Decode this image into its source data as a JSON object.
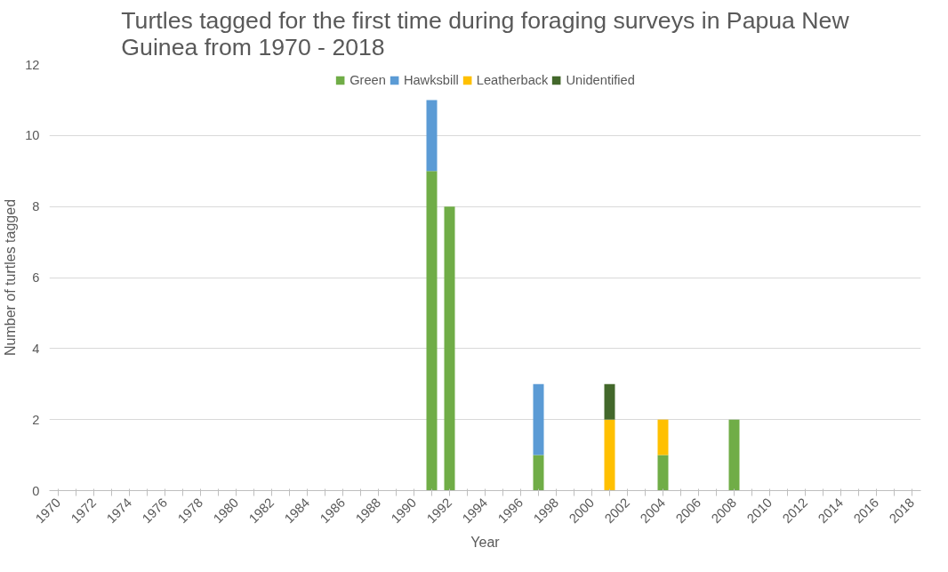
{
  "chart_data": {
    "type": "bar",
    "stacked": true,
    "title": "Turtles tagged for the first time during foraging surveys in Papua New\nGuinea from 1970 - 2018",
    "xlabel": "Year",
    "ylabel": "Number of turtles tagged",
    "categories": [
      "1970",
      null,
      "1972",
      null,
      "1974",
      null,
      "1976",
      null,
      "1978",
      null,
      "1980",
      null,
      "1982",
      null,
      "1984",
      null,
      "1986",
      null,
      "1988",
      null,
      "1990",
      null,
      "1992",
      null,
      "1994",
      null,
      "1996",
      null,
      "1998",
      null,
      "2000",
      null,
      "2002",
      null,
      "2004",
      null,
      "2006",
      null,
      "2008",
      null,
      "2010",
      null,
      "2012",
      null,
      "2014",
      null,
      "2016",
      null,
      "2018"
    ],
    "series": [
      {
        "name": "Green",
        "color": "#70ad47",
        "values": [
          0,
          0,
          0,
          0,
          0,
          0,
          0,
          0,
          0,
          0,
          0,
          0,
          0,
          0,
          0,
          0,
          0,
          0,
          0,
          0,
          0,
          9,
          8,
          0,
          0,
          0,
          0,
          1,
          0,
          0,
          0,
          0,
          0,
          0,
          1,
          0,
          0,
          0,
          2,
          0,
          0,
          0,
          0,
          0,
          0,
          0,
          0,
          0,
          0
        ]
      },
      {
        "name": "Hawksbill",
        "color": "#5b9bd5",
        "values": [
          0,
          0,
          0,
          0,
          0,
          0,
          0,
          0,
          0,
          0,
          0,
          0,
          0,
          0,
          0,
          0,
          0,
          0,
          0,
          0,
          0,
          2,
          0,
          0,
          0,
          0,
          0,
          2,
          0,
          0,
          0,
          0,
          0,
          0,
          0,
          0,
          0,
          0,
          0,
          0,
          0,
          0,
          0,
          0,
          0,
          0,
          0,
          0,
          0
        ]
      },
      {
        "name": "Leatherback",
        "color": "#ffc000",
        "values": [
          0,
          0,
          0,
          0,
          0,
          0,
          0,
          0,
          0,
          0,
          0,
          0,
          0,
          0,
          0,
          0,
          0,
          0,
          0,
          0,
          0,
          0,
          0,
          0,
          0,
          0,
          0,
          0,
          0,
          0,
          0,
          2,
          0,
          0,
          1,
          0,
          0,
          0,
          0,
          0,
          0,
          0,
          0,
          0,
          0,
          0,
          0,
          0,
          0
        ]
      },
      {
        "name": "Unidentified",
        "color": "#43682b",
        "values": [
          0,
          0,
          0,
          0,
          0,
          0,
          0,
          0,
          0,
          0,
          0,
          0,
          0,
          0,
          0,
          0,
          0,
          0,
          0,
          0,
          0,
          0,
          0,
          0,
          0,
          0,
          0,
          0,
          0,
          0,
          0,
          1,
          0,
          0,
          0,
          0,
          0,
          0,
          0,
          0,
          0,
          0,
          0,
          0,
          0,
          0,
          0,
          0,
          0
        ]
      }
    ],
    "ylim": [
      0,
      12
    ],
    "yticks": [
      0,
      2,
      4,
      6,
      8,
      10,
      12
    ],
    "grid": "y",
    "legend": "top"
  }
}
